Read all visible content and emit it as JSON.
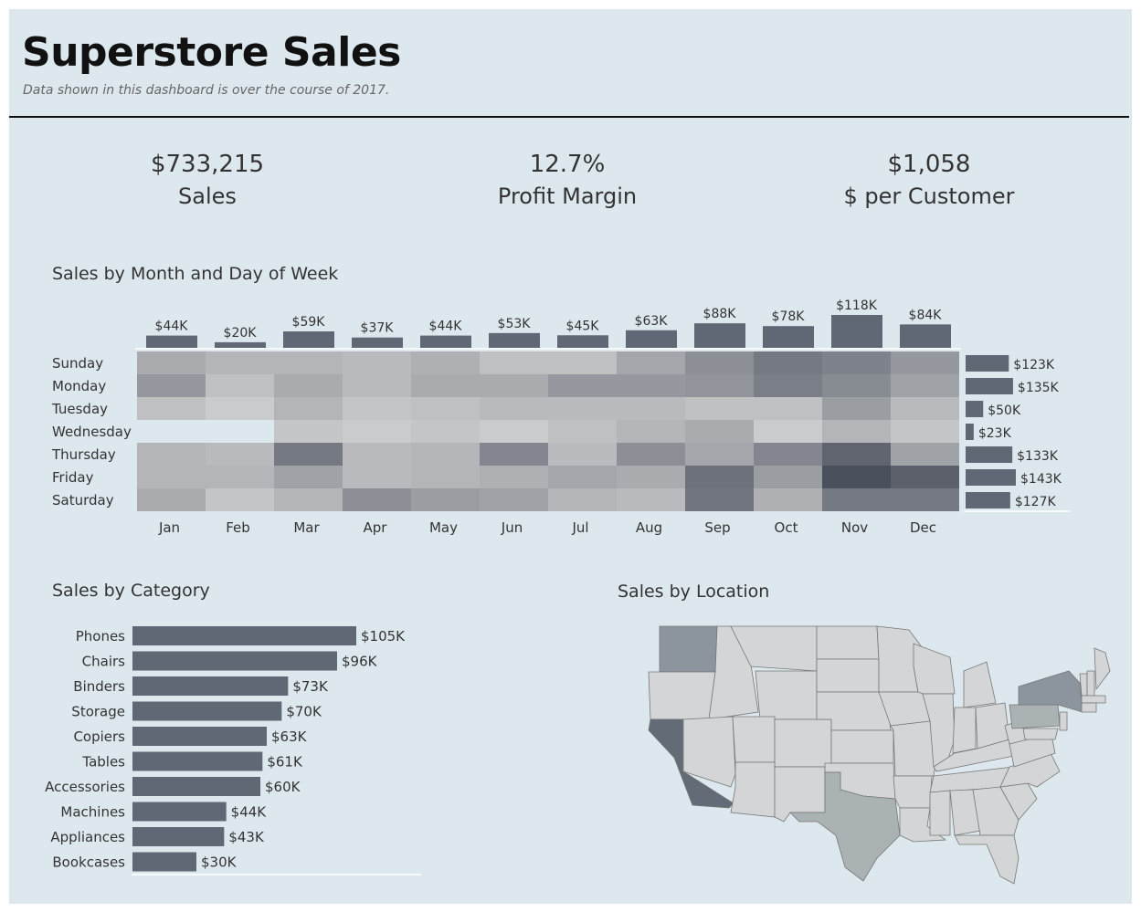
{
  "header": {
    "title": "Superstore Sales",
    "subtitle": "Data shown in this dashboard is over the course of 2017."
  },
  "kpis": [
    {
      "value": "$733,215",
      "label": "Sales"
    },
    {
      "value": "12.7%",
      "label": "Profit Margin"
    },
    {
      "value": "$1,058",
      "label": "$ per Customer"
    }
  ],
  "sections": {
    "heatmap_title": "Sales by Month and Day of Week",
    "category_title": "Sales by Category",
    "location_title": "Sales by Location"
  },
  "colors": {
    "background": "#dde8ee",
    "bar": "#5f6874",
    "heat_low": "#d9d9d9",
    "heat_high": "#4a505c",
    "map_state": "#d3d5d6",
    "map_border": "#777777"
  },
  "chart_data": [
    {
      "type": "heatmap",
      "title": "Sales by Month and Day of Week",
      "months": [
        "Jan",
        "Feb",
        "Mar",
        "Apr",
        "May",
        "Jun",
        "Jul",
        "Aug",
        "Sep",
        "Oct",
        "Nov",
        "Dec"
      ],
      "days": [
        "Sunday",
        "Monday",
        "Tuesday",
        "Wednesday",
        "Thursday",
        "Friday",
        "Saturday"
      ],
      "month_totals": [
        44,
        20,
        59,
        37,
        44,
        53,
        45,
        63,
        88,
        78,
        118,
        84
      ],
      "month_labels": [
        "$44K",
        "$20K",
        "$59K",
        "$37K",
        "$44K",
        "$53K",
        "$45K",
        "$63K",
        "$88K",
        "$78K",
        "$118K",
        "$84K"
      ],
      "day_totals": [
        123,
        135,
        50,
        23,
        133,
        143,
        127
      ],
      "day_labels": [
        "$123K",
        "$135K",
        "$50K",
        "$23K",
        "$133K",
        "$143K",
        "$127K"
      ],
      "cells": [
        [
          8,
          6,
          6,
          5,
          7,
          4,
          4,
          9,
          14,
          19,
          17,
          12
        ],
        [
          12,
          4,
          8,
          5,
          8,
          8,
          12,
          12,
          13,
          18,
          15,
          10
        ],
        [
          4,
          2,
          6,
          3,
          4,
          5,
          5,
          5,
          4,
          4,
          11,
          5
        ],
        [
          null,
          null,
          3,
          2,
          3,
          2,
          4,
          6,
          8,
          2,
          6,
          3
        ],
        [
          6,
          5,
          19,
          5,
          6,
          16,
          5,
          14,
          9,
          16,
          24,
          10
        ],
        [
          6,
          6,
          10,
          5,
          6,
          7,
          9,
          8,
          21,
          11,
          29,
          25
        ],
        [
          8,
          3,
          6,
          14,
          11,
          10,
          6,
          5,
          20,
          7,
          19,
          19
        ]
      ]
    },
    {
      "type": "bar",
      "title": "Sales by Category",
      "categories": [
        "Phones",
        "Chairs",
        "Binders",
        "Storage",
        "Copiers",
        "Tables",
        "Accessories",
        "Machines",
        "Appliances",
        "Bookcases"
      ],
      "values": [
        105,
        96,
        73,
        70,
        63,
        61,
        60,
        44,
        43,
        30
      ],
      "labels": [
        "$105K",
        "$96K",
        "$73K",
        "$70K",
        "$63K",
        "$61K",
        "$60K",
        "$44K",
        "$43K",
        "$30K"
      ],
      "orientation": "horizontal"
    }
  ],
  "map": {
    "title": "Sales by Location",
    "highlighted_states": [
      {
        "name": "California",
        "shade": "dark"
      },
      {
        "name": "Washington",
        "shade": "medium"
      },
      {
        "name": "New York",
        "shade": "medium"
      },
      {
        "name": "Texas",
        "shade": "light-medium"
      },
      {
        "name": "Pennsylvania",
        "shade": "light-medium"
      }
    ]
  }
}
